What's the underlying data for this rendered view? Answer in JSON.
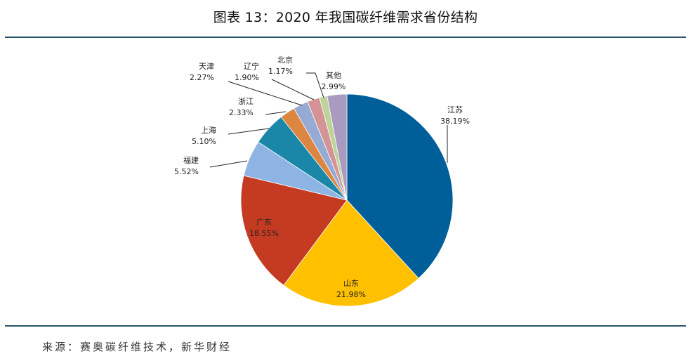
{
  "title": "图表 13：2020 年我国碳纤维需求省份结构",
  "source": "来源：赛奥碳纤维技术，新华财经",
  "chart_data": {
    "type": "pie",
    "title": "2020 年我国碳纤维需求省份结构",
    "start_angle": "12 o'clock",
    "direction": "clockwise",
    "unit": "%",
    "slices": [
      {
        "label": "江苏",
        "value": 38.19,
        "display": "38.19%",
        "color": "#005e98"
      },
      {
        "label": "山东",
        "value": 21.98,
        "display": "21.98%",
        "color": "#ffc000"
      },
      {
        "label": "广东",
        "value": 18.55,
        "display": "18.55%",
        "color": "#c53b22"
      },
      {
        "label": "福建",
        "value": 5.52,
        "display": "5.52%",
        "color": "#8db4e2"
      },
      {
        "label": "上海",
        "value": 5.1,
        "display": "5.10%",
        "color": "#1a87a8"
      },
      {
        "label": "浙江",
        "value": 2.33,
        "display": "2.33%",
        "color": "#dc8641"
      },
      {
        "label": "天津",
        "value": 2.27,
        "display": "2.27%",
        "color": "#95abd4"
      },
      {
        "label": "辽宁",
        "value": 1.9,
        "display": "1.90%",
        "color": "#d49394"
      },
      {
        "label": "北京",
        "value": 1.17,
        "display": "1.17%",
        "color": "#bdd39a"
      },
      {
        "label": "其他",
        "value": 2.99,
        "display": "2.99%",
        "color": "#a99bc0"
      }
    ]
  }
}
